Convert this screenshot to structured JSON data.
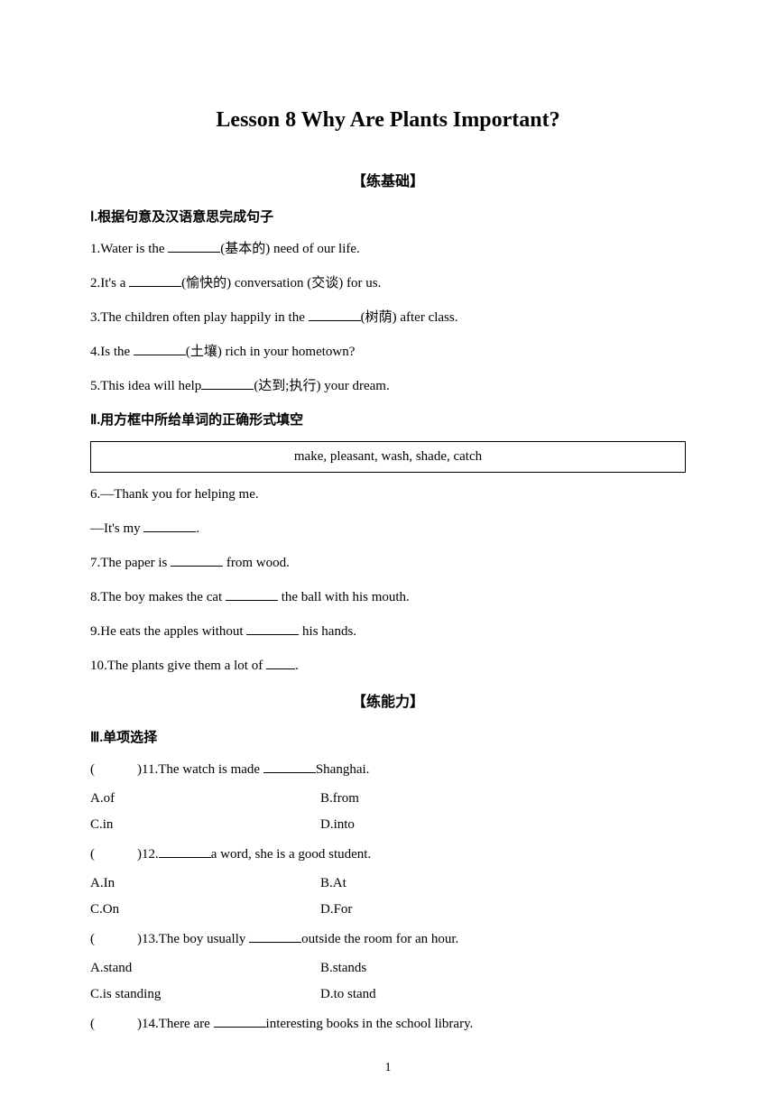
{
  "title": "Lesson 8 Why Are Plants Important?",
  "section1": {
    "header": "【练基础】",
    "part1_header": "Ⅰ.根据句意及汉语意思完成句子",
    "q1_prefix": "1.Water is the  ",
    "q1_suffix": "(基本的) need of our life.",
    "q2_prefix": "2.It's a  ",
    "q2_suffix": "(愉快的) conversation (交谈) for us.",
    "q3_prefix": "3.The children often play happily in the  ",
    "q3_suffix": "(树荫) after class.",
    "q4_prefix": "4.Is the  ",
    "q4_suffix": "(土壤) rich in your hometown?",
    "q5_prefix": "5.This idea will help",
    "q5_suffix": "(达到;执行) your dream.",
    "part2_header": "Ⅱ.用方框中所给单词的正确形式填空",
    "word_box": "make, pleasant, wash, shade, catch",
    "q6_line1": "6.—Thank you for helping me.",
    "q6_line2_prefix": "—It's my ",
    "q6_line2_suffix": ".",
    "q7_prefix": "7.The paper is ",
    "q7_suffix": "  from wood.",
    "q8_prefix": "8.The boy makes the cat ",
    "q8_suffix": "  the ball with his mouth.",
    "q9_prefix": "9.He eats the apples without  ",
    "q9_suffix": "  his hands.",
    "q10_prefix": "10.The plants give them a lot of  ",
    "q10_suffix": "."
  },
  "section2": {
    "header": "【练能力】",
    "part3_header": "Ⅲ.单项选择",
    "q11_prefix": ")11.The watch is made  ",
    "q11_suffix": "Shanghai.",
    "q11_a": "A.of",
    "q11_b": "B.from",
    "q11_c": "C.in",
    "q11_d": "D.into",
    "q12_prefix": ")12.",
    "q12_suffix": "a word, she is a good student.",
    "q12_a": "A.In",
    "q12_b": "B.At",
    "q12_c": "C.On",
    "q12_d": "D.For",
    "q13_prefix": ")13.The boy usually  ",
    "q13_suffix": "outside the room for an hour.",
    "q13_a": "A.stand",
    "q13_b": "B.stands",
    "q13_c": "C.is standing",
    "q13_d": "D.to stand",
    "q14_prefix": ")14.There are  ",
    "q14_suffix": "interesting books in the school library."
  },
  "page_number": "1"
}
